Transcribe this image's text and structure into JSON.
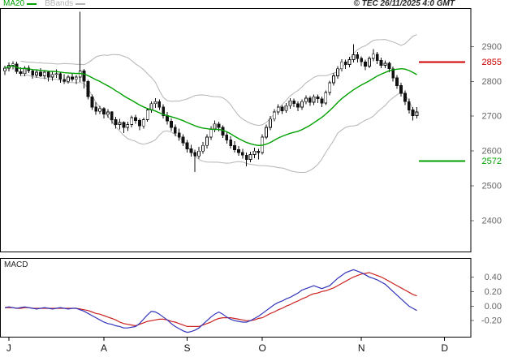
{
  "header": {
    "legend": [
      {
        "label": "MA20",
        "color": "#00a000"
      },
      {
        "label": "BBands",
        "color": "#b4b4b4"
      }
    ],
    "copyright": "© TEC 26/11/2025 4:0 GMT"
  },
  "xaxis": {
    "months": [
      {
        "label": "J",
        "index": 1
      },
      {
        "label": "A",
        "index": 25
      },
      {
        "label": "S",
        "index": 46
      },
      {
        "label": "O",
        "index": 65
      },
      {
        "label": "N",
        "index": 90
      },
      {
        "label": "D",
        "index": 111
      }
    ]
  },
  "chart_data": [
    {
      "type": "candlestick",
      "panel": "price",
      "ylim": [
        2312,
        3010
      ],
      "yticks": [
        {
          "value": 2900,
          "label": "2900"
        },
        {
          "value": 2800,
          "label": "2800"
        },
        {
          "value": 2700,
          "label": "2700"
        },
        {
          "value": 2600,
          "label": "2600"
        },
        {
          "value": 2500,
          "label": "2500"
        },
        {
          "value": 2400,
          "label": "2400"
        }
      ],
      "hlines": [
        {
          "name": "resistance",
          "value": 2855,
          "label": "2855",
          "color": "#cc0000"
        },
        {
          "name": "support",
          "value": 2572,
          "label": "2572",
          "color": "#00a000"
        }
      ],
      "overlays": [
        {
          "name": "MA20",
          "type": "sma",
          "window": 20,
          "color": "#00a000"
        },
        {
          "name": "BBands",
          "type": "bollinger",
          "window": 20,
          "mult": 2,
          "color": "#b4b4b4"
        }
      ],
      "candles": [
        [
          2830,
          2845,
          2818,
          2838
        ],
        [
          2838,
          2854,
          2828,
          2846
        ],
        [
          2846,
          2858,
          2834,
          2850
        ],
        [
          2850,
          2856,
          2822,
          2828
        ],
        [
          2828,
          2840,
          2816,
          2822
        ],
        [
          2822,
          2844,
          2814,
          2838
        ],
        [
          2838,
          2846,
          2824,
          2830
        ],
        [
          2830,
          2836,
          2808,
          2818
        ],
        [
          2818,
          2834,
          2810,
          2826
        ],
        [
          2826,
          2838,
          2812,
          2816
        ],
        [
          2816,
          2832,
          2806,
          2826
        ],
        [
          2826,
          2830,
          2800,
          2812
        ],
        [
          2812,
          2828,
          2802,
          2820
        ],
        [
          2820,
          2834,
          2810,
          2822
        ],
        [
          2822,
          2826,
          2796,
          2806
        ],
        [
          2806,
          2820,
          2792,
          2800
        ],
        [
          2800,
          2818,
          2794,
          2812
        ],
        [
          2812,
          2824,
          2800,
          2806
        ],
        [
          2806,
          2818,
          2792,
          2812
        ],
        [
          2812,
          3000,
          2798,
          2830
        ],
        [
          2830,
          2836,
          2780,
          2800
        ],
        [
          2800,
          2804,
          2748,
          2756
        ],
        [
          2756,
          2762,
          2718,
          2726
        ],
        [
          2726,
          2740,
          2704,
          2714
        ],
        [
          2714,
          2730,
          2706,
          2722
        ],
        [
          2722,
          2726,
          2694,
          2706
        ],
        [
          2706,
          2720,
          2696,
          2712
        ],
        [
          2712,
          2714,
          2678,
          2690
        ],
        [
          2690,
          2698,
          2664,
          2676
        ],
        [
          2676,
          2692,
          2662,
          2682
        ],
        [
          2682,
          2686,
          2652,
          2668
        ],
        [
          2668,
          2684,
          2658,
          2676
        ],
        [
          2676,
          2702,
          2668,
          2696
        ],
        [
          2696,
          2704,
          2678,
          2688
        ],
        [
          2688,
          2694,
          2660,
          2672
        ],
        [
          2672,
          2696,
          2664,
          2690
        ],
        [
          2690,
          2724,
          2684,
          2718
        ],
        [
          2718,
          2742,
          2710,
          2736
        ],
        [
          2736,
          2752,
          2724,
          2742
        ],
        [
          2742,
          2748,
          2718,
          2726
        ],
        [
          2726,
          2734,
          2694,
          2702
        ],
        [
          2702,
          2712,
          2676,
          2686
        ],
        [
          2686,
          2694,
          2658,
          2668
        ],
        [
          2668,
          2676,
          2642,
          2652
        ],
        [
          2652,
          2664,
          2630,
          2640
        ],
        [
          2640,
          2648,
          2614,
          2624
        ],
        [
          2624,
          2632,
          2596,
          2606
        ],
        [
          2606,
          2618,
          2584,
          2596
        ],
        [
          2596,
          2604,
          2540,
          2586
        ],
        [
          2586,
          2612,
          2578,
          2600
        ],
        [
          2600,
          2626,
          2592,
          2616
        ],
        [
          2616,
          2648,
          2608,
          2640
        ],
        [
          2640,
          2672,
          2632,
          2664
        ],
        [
          2664,
          2688,
          2654,
          2678
        ],
        [
          2678,
          2684,
          2656,
          2668
        ],
        [
          2668,
          2674,
          2638,
          2646
        ],
        [
          2646,
          2656,
          2622,
          2632
        ],
        [
          2632,
          2642,
          2608,
          2616
        ],
        [
          2616,
          2628,
          2596,
          2604
        ],
        [
          2604,
          2614,
          2586,
          2596
        ],
        [
          2596,
          2606,
          2578,
          2588
        ],
        [
          2588,
          2596,
          2556,
          2576
        ],
        [
          2576,
          2598,
          2568,
          2590
        ],
        [
          2590,
          2610,
          2580,
          2600
        ],
        [
          2600,
          2606,
          2576,
          2596
        ],
        [
          2596,
          2648,
          2590,
          2640
        ],
        [
          2640,
          2676,
          2634,
          2668
        ],
        [
          2668,
          2700,
          2660,
          2692
        ],
        [
          2692,
          2720,
          2686,
          2712
        ],
        [
          2712,
          2734,
          2704,
          2726
        ],
        [
          2726,
          2732,
          2706,
          2716
        ],
        [
          2716,
          2738,
          2710,
          2730
        ],
        [
          2730,
          2752,
          2722,
          2744
        ],
        [
          2744,
          2750,
          2726,
          2736
        ],
        [
          2736,
          2742,
          2714,
          2726
        ],
        [
          2726,
          2748,
          2718,
          2742
        ],
        [
          2742,
          2760,
          2734,
          2752
        ],
        [
          2752,
          2758,
          2730,
          2740
        ],
        [
          2740,
          2762,
          2732,
          2756
        ],
        [
          2756,
          2762,
          2738,
          2750
        ],
        [
          2750,
          2756,
          2726,
          2738
        ],
        [
          2738,
          2774,
          2732,
          2768
        ],
        [
          2768,
          2802,
          2760,
          2796
        ],
        [
          2796,
          2824,
          2788,
          2816
        ],
        [
          2816,
          2844,
          2808,
          2836
        ],
        [
          2836,
          2864,
          2828,
          2856
        ],
        [
          2856,
          2862,
          2836,
          2848
        ],
        [
          2848,
          2870,
          2840,
          2862
        ],
        [
          2862,
          2906,
          2854,
          2876
        ],
        [
          2876,
          2884,
          2854,
          2866
        ],
        [
          2866,
          2872,
          2844,
          2856
        ],
        [
          2856,
          2862,
          2832,
          2844
        ],
        [
          2844,
          2872,
          2838,
          2866
        ],
        [
          2866,
          2892,
          2858,
          2878
        ],
        [
          2878,
          2884,
          2850,
          2860
        ],
        [
          2860,
          2868,
          2838,
          2846
        ],
        [
          2846,
          2860,
          2838,
          2852
        ],
        [
          2852,
          2856,
          2826,
          2836
        ],
        [
          2836,
          2842,
          2800,
          2810
        ],
        [
          2810,
          2818,
          2778,
          2788
        ],
        [
          2788,
          2796,
          2756,
          2766
        ],
        [
          2766,
          2774,
          2732,
          2742
        ],
        [
          2742,
          2750,
          2708,
          2718
        ],
        [
          2718,
          2726,
          2688,
          2702
        ],
        [
          2702,
          2726,
          2694,
          2712
        ]
      ]
    },
    {
      "type": "line",
      "panel": "macd",
      "title": "MACD",
      "ylim": [
        -0.42,
        0.66
      ],
      "yticks": [
        {
          "value": 0.4,
          "label": "0.40"
        },
        {
          "value": 0.2,
          "label": "0.20"
        },
        {
          "value": 0.0,
          "label": "0.00"
        },
        {
          "value": -0.2,
          "label": "-0.20"
        }
      ],
      "series": [
        {
          "name": "MACD",
          "color": "#3333bb",
          "values": [
            -0.02,
            -0.01,
            -0.02,
            -0.03,
            -0.02,
            -0.01,
            -0.02,
            -0.03,
            -0.04,
            -0.03,
            -0.02,
            -0.03,
            -0.04,
            -0.03,
            -0.02,
            -0.03,
            -0.04,
            -0.03,
            -0.03,
            -0.05,
            -0.07,
            -0.1,
            -0.13,
            -0.16,
            -0.19,
            -0.22,
            -0.24,
            -0.25,
            -0.27,
            -0.28,
            -0.3,
            -0.3,
            -0.29,
            -0.28,
            -0.24,
            -0.18,
            -0.12,
            -0.07,
            -0.08,
            -0.11,
            -0.15,
            -0.19,
            -0.24,
            -0.28,
            -0.31,
            -0.34,
            -0.36,
            -0.35,
            -0.33,
            -0.3,
            -0.25,
            -0.2,
            -0.15,
            -0.11,
            -0.08,
            -0.11,
            -0.15,
            -0.18,
            -0.2,
            -0.21,
            -0.22,
            -0.22,
            -0.2,
            -0.17,
            -0.14,
            -0.1,
            -0.06,
            -0.02,
            0.02,
            0.05,
            0.07,
            0.1,
            0.12,
            0.15,
            0.18,
            0.22,
            0.24,
            0.26,
            0.28,
            0.26,
            0.24,
            0.26,
            0.28,
            0.33,
            0.38,
            0.42,
            0.46,
            0.48,
            0.5,
            0.48,
            0.46,
            0.43,
            0.4,
            0.38,
            0.36,
            0.33,
            0.3,
            0.25,
            0.2,
            0.15,
            0.1,
            0.05,
            0.0,
            -0.03,
            -0.06
          ]
        },
        {
          "name": "Signal",
          "color": "#cc2222",
          "values": [
            -0.02,
            -0.02,
            -0.02,
            -0.03,
            -0.03,
            -0.02,
            -0.02,
            -0.03,
            -0.03,
            -0.03,
            -0.03,
            -0.03,
            -0.03,
            -0.03,
            -0.03,
            -0.03,
            -0.03,
            -0.03,
            -0.03,
            -0.04,
            -0.05,
            -0.06,
            -0.08,
            -0.1,
            -0.11,
            -0.13,
            -0.15,
            -0.17,
            -0.19,
            -0.22,
            -0.24,
            -0.25,
            -0.26,
            -0.27,
            -0.25,
            -0.23,
            -0.21,
            -0.2,
            -0.19,
            -0.18,
            -0.18,
            -0.19,
            -0.21,
            -0.22,
            -0.24,
            -0.26,
            -0.28,
            -0.28,
            -0.28,
            -0.28,
            -0.26,
            -0.24,
            -0.22,
            -0.19,
            -0.17,
            -0.16,
            -0.16,
            -0.16,
            -0.17,
            -0.18,
            -0.19,
            -0.2,
            -0.2,
            -0.19,
            -0.17,
            -0.16,
            -0.13,
            -0.1,
            -0.08,
            -0.05,
            -0.03,
            0.0,
            0.02,
            0.05,
            0.07,
            0.1,
            0.12,
            0.15,
            0.17,
            0.18,
            0.2,
            0.21,
            0.23,
            0.25,
            0.28,
            0.31,
            0.34,
            0.37,
            0.4,
            0.42,
            0.44,
            0.45,
            0.46,
            0.44,
            0.42,
            0.4,
            0.37,
            0.34,
            0.31,
            0.28,
            0.25,
            0.22,
            0.19,
            0.16,
            0.14
          ]
        }
      ]
    }
  ]
}
